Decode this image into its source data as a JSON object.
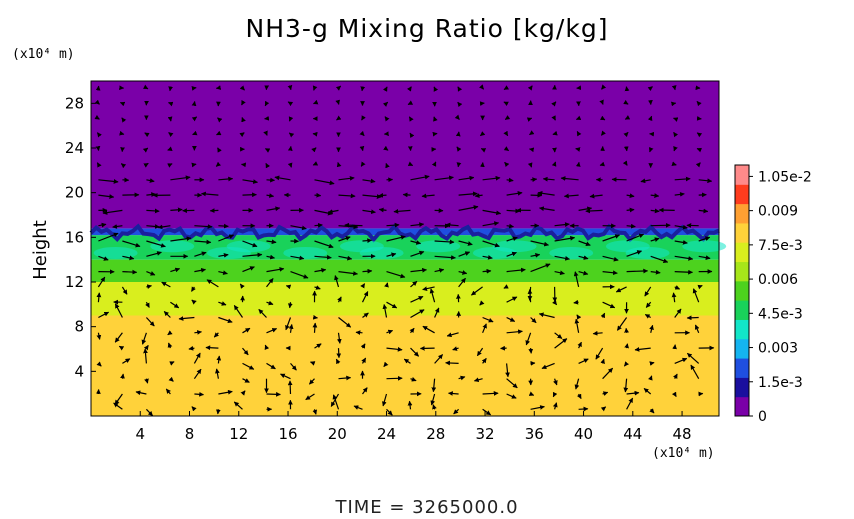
{
  "title": "NH3-g Mixing Ratio [kg/kg]",
  "time_label": "TIME  =  3265000.0",
  "chart_data": {
    "type": "heatmap",
    "title": "NH3-g Mixing Ratio [kg/kg]",
    "ylabel": "Height",
    "y_unit": "(x10⁴ m)",
    "x_unit": "(x10⁴ m)",
    "xlim": [
      0,
      51
    ],
    "ylim": [
      0,
      30
    ],
    "x_ticks": [
      4,
      8,
      12,
      16,
      20,
      24,
      28,
      32,
      36,
      40,
      44,
      48
    ],
    "y_ticks": [
      4,
      8,
      12,
      16,
      20,
      24,
      28
    ],
    "grid": false,
    "colorbar": {
      "range": [
        0,
        0.011
      ],
      "tick_values": [
        0,
        0.0015,
        0.003,
        0.0045,
        0.006,
        0.0075,
        0.009,
        0.0105
      ],
      "tick_labels": [
        "0",
        "1.5e-3",
        "0.003",
        "4.5e-3",
        "0.006",
        "7.5e-3",
        "0.009",
        "1.05e-2"
      ],
      "colors": [
        "#7a00a8",
        "#1a0f9e",
        "#1f4fe0",
        "#14b4f0",
        "#12e6c8",
        "#19d25a",
        "#4dd21e",
        "#a7e61a",
        "#d9ee1e",
        "#ffd23a",
        "#ffa032",
        "#ff3c1e",
        "#ff8a8a"
      ]
    },
    "field_description_by_height": [
      {
        "height": [
          0,
          9
        ],
        "value": 0.0079
      },
      {
        "height": [
          9,
          12
        ],
        "value": 0.007
      },
      {
        "height": [
          12,
          14
        ],
        "value": 0.0058
      },
      {
        "height": [
          14,
          16.2
        ],
        "value": 0.0044
      },
      {
        "height": [
          16.2,
          16.8
        ],
        "value": 0.0016
      },
      {
        "height": [
          16.8,
          30
        ],
        "value": 0.0
      }
    ],
    "vectors": "wind velocity arrows over the domain"
  }
}
